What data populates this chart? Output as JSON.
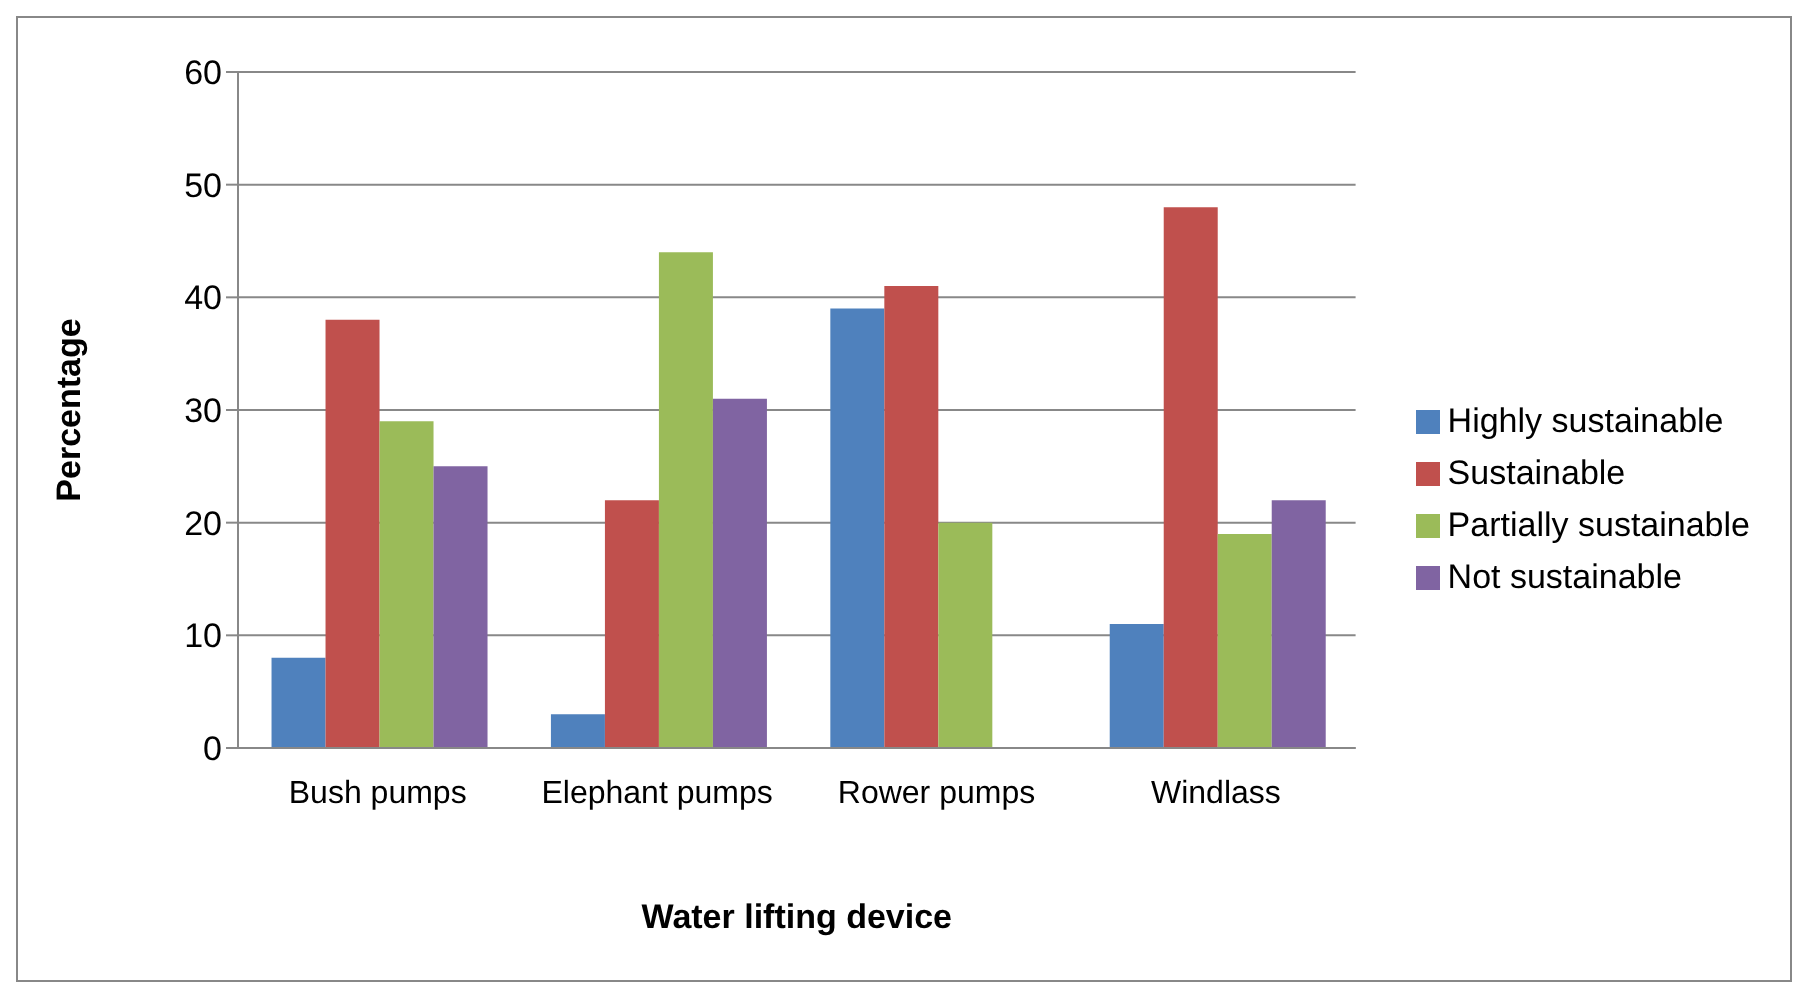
{
  "chart_data": {
    "type": "bar",
    "xlabel": "Water lifting device",
    "ylabel": "Percentage",
    "categories": [
      "Bush pumps",
      "Elephant pumps",
      "Rower pumps",
      "Windlass"
    ],
    "series": [
      {
        "name": "Highly sustainable",
        "color": "#4f81bd",
        "values": [
          8,
          3,
          39,
          11
        ]
      },
      {
        "name": "Sustainable",
        "color": "#c0504d",
        "values": [
          38,
          22,
          41,
          48
        ]
      },
      {
        "name": "Partially sustainable",
        "color": "#9bbb59",
        "values": [
          29,
          44,
          20,
          19
        ]
      },
      {
        "name": "Not sustainable",
        "color": "#8064a2",
        "values": [
          25,
          31,
          0,
          22
        ]
      }
    ],
    "ylim": [
      0,
      60
    ],
    "yticks": [
      0,
      10,
      20,
      30,
      40,
      50,
      60
    ],
    "grid": "y",
    "legend": "right"
  }
}
